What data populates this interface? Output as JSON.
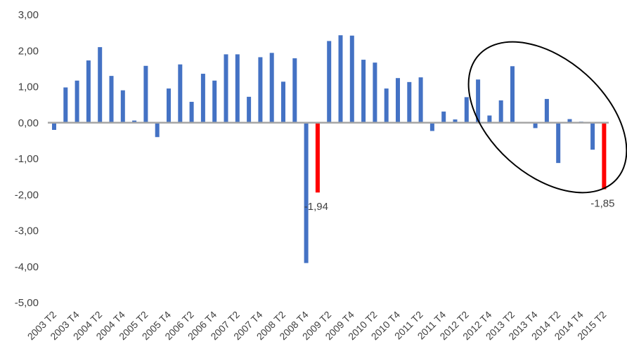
{
  "chart_data": {
    "type": "bar",
    "title": "",
    "xlabel": "",
    "ylabel": "",
    "ylim": [
      -5,
      3
    ],
    "yticks": [
      3,
      2,
      1,
      0,
      -1,
      -2,
      -3,
      -4,
      -5
    ],
    "ytick_labels": [
      "3,00",
      "2,00",
      "1,00",
      "0,00",
      "-1,00",
      "-2,00",
      "-3,00",
      "-4,00",
      "-5,00"
    ],
    "grid": false,
    "colors": {
      "default": "#4472C4",
      "highlight": "#FF0000",
      "axis": "#A6A6A6",
      "ellipse": "#000000"
    },
    "x_tick_labels": [
      "2003 T2",
      "2003 T4",
      "2004 T2",
      "2004 T4",
      "2005 T2",
      "2005 T4",
      "2006 T2",
      "2006 T4",
      "2007 T2",
      "2007 T4",
      "2008 T2",
      "2008 T4",
      "2009 T2",
      "2009 T4",
      "2010 T2",
      "2010 T4",
      "2011 T2",
      "2011 T4",
      "2012 T2",
      "2012 T4",
      "2013 T2",
      "2013 T4",
      "2014 T2",
      "2014 T4",
      "2015 T2"
    ],
    "categories": [
      "2003 T2",
      "2003 T3",
      "2003 T4",
      "2004 T1",
      "2004 T2",
      "2004 T3",
      "2004 T4",
      "2005 T1",
      "2005 T2",
      "2005 T3",
      "2005 T4",
      "2006 T1",
      "2006 T2",
      "2006 T3",
      "2006 T4",
      "2007 T1",
      "2007 T2",
      "2007 T3",
      "2007 T4",
      "2008 T1",
      "2008 T2",
      "2008 T3",
      "2008 T4",
      "2009 T1",
      "2009 T2",
      "2009 T3",
      "2009 T4",
      "2010 T1",
      "2010 T2",
      "2010 T3",
      "2010 T4",
      "2011 T1",
      "2011 T2",
      "2011 T3",
      "2011 T4",
      "2012 T1",
      "2012 T2",
      "2012 T3",
      "2012 T4",
      "2013 T1",
      "2013 T2",
      "2013 T3",
      "2013 T4",
      "2014 T1",
      "2014 T2",
      "2014 T3",
      "2014 T4",
      "2015 T1",
      "2015 T2"
    ],
    "values": [
      -0.2,
      0.98,
      1.17,
      1.73,
      2.1,
      1.3,
      0.9,
      0.06,
      1.58,
      -0.4,
      0.95,
      1.62,
      0.58,
      1.36,
      1.17,
      1.9,
      1.9,
      0.72,
      1.82,
      1.94,
      1.14,
      1.79,
      -3.9,
      -1.94,
      2.27,
      2.43,
      2.42,
      1.75,
      1.67,
      0.95,
      1.24,
      1.13,
      1.26,
      -0.23,
      0.31,
      0.09,
      0.71,
      1.2,
      0.2,
      0.62,
      1.57,
      0.02,
      -0.15,
      0.66,
      -1.12,
      0.1,
      0.03,
      -0.75,
      -1.85
    ],
    "highlight_indices": [
      23,
      48
    ],
    "data_labels": [
      {
        "index": 23,
        "text": "-1,94"
      },
      {
        "index": 48,
        "text": "-1,85"
      }
    ],
    "annotations": [
      {
        "type": "ellipse",
        "description": "circled region",
        "from": "2012 T4",
        "to": "2015 T2"
      }
    ]
  }
}
